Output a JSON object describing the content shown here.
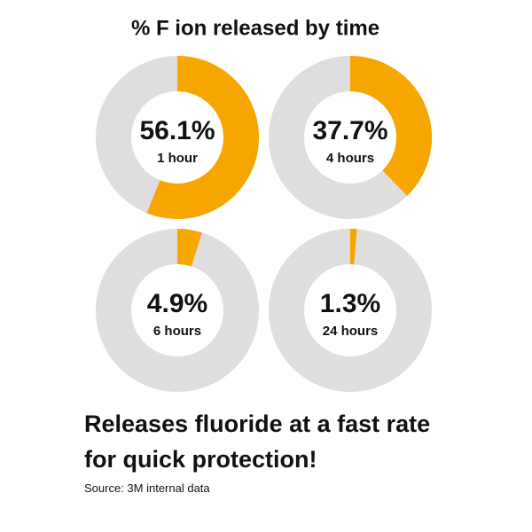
{
  "title": "% F ion released by time",
  "chart_data": [
    {
      "type": "donut",
      "values": [
        56.1
      ],
      "value_labels": [
        "56.1%"
      ],
      "subtitle": "1 hour",
      "color": "#f7a600",
      "track_color": "#dedede"
    },
    {
      "type": "donut",
      "values": [
        37.7
      ],
      "value_labels": [
        "37.7%"
      ],
      "subtitle": "4 hours",
      "color": "#f7a600",
      "track_color": "#dedede"
    },
    {
      "type": "donut",
      "values": [
        4.9
      ],
      "value_labels": [
        "4.9%"
      ],
      "subtitle": "6 hours",
      "color": "#f7a600",
      "track_color": "#dedede"
    },
    {
      "type": "donut",
      "values": [
        1.3
      ],
      "value_labels": [
        "1.3%"
      ],
      "subtitle": "24 hours",
      "color": "#f7a600",
      "track_color": "#dedede"
    }
  ],
  "tagline": [
    "Releases fluoride at a fast rate",
    "for quick protection!"
  ],
  "source": "Source: 3M internal data"
}
